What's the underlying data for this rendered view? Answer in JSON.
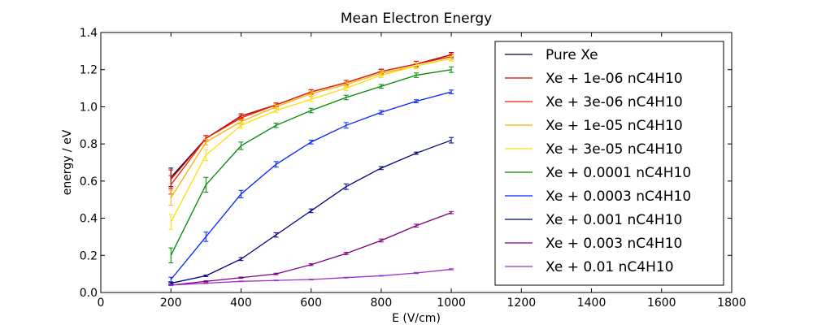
{
  "chart_data": {
    "type": "line",
    "title": "Mean Electron Energy",
    "xlabel": "E (V/cm)",
    "ylabel": "energy / eV",
    "xlim": [
      0,
      1800
    ],
    "ylim": [
      0.0,
      1.4
    ],
    "xticks": [
      0,
      200,
      400,
      600,
      800,
      1000,
      1200,
      1400,
      1600,
      1800
    ],
    "xtick_labels": [
      "0",
      "200",
      "400",
      "600",
      "800",
      "1000",
      "1200",
      "1400",
      "1600",
      "1800"
    ],
    "yticks": [
      0.0,
      0.2,
      0.4,
      0.6,
      0.8,
      1.0,
      1.2,
      1.4
    ],
    "ytick_labels": [
      "0.0",
      "0.2",
      "0.4",
      "0.6",
      "0.8",
      "1.0",
      "1.2",
      "1.4"
    ],
    "grid": false,
    "legend_position": "right",
    "x": [
      200,
      300,
      400,
      500,
      600,
      700,
      800,
      900,
      1000
    ],
    "series": [
      {
        "name": "Pure Xe",
        "color": "#000033",
        "values": [
          0.62,
          0.83,
          0.95,
          1.01,
          1.08,
          1.13,
          1.19,
          1.23,
          1.28
        ],
        "errors": [
          0.05,
          0.015,
          0.012,
          0.01,
          0.012,
          0.012,
          0.012,
          0.015,
          0.012
        ]
      },
      {
        "name": "Xe + 1e-06 nC4H10",
        "color": "#cc0000",
        "values": [
          0.61,
          0.83,
          0.95,
          1.01,
          1.08,
          1.13,
          1.19,
          1.23,
          1.28
        ],
        "errors": [
          0.05,
          0.015,
          0.012,
          0.01,
          0.012,
          0.012,
          0.012,
          0.015,
          0.012
        ]
      },
      {
        "name": "Xe + 3e-06 nC4H10",
        "color": "#ee2200",
        "values": [
          0.58,
          0.83,
          0.94,
          1.01,
          1.08,
          1.13,
          1.19,
          1.23,
          1.27
        ],
        "errors": [
          0.05,
          0.015,
          0.012,
          0.01,
          0.012,
          0.012,
          0.012,
          0.015,
          0.012
        ]
      },
      {
        "name": "Xe + 1e-05 nC4H10",
        "color": "#ffaa00",
        "values": [
          0.51,
          0.81,
          0.92,
          1.0,
          1.07,
          1.12,
          1.18,
          1.22,
          1.26
        ],
        "errors": [
          0.04,
          0.015,
          0.012,
          0.01,
          0.012,
          0.012,
          0.012,
          0.015,
          0.012
        ]
      },
      {
        "name": "Xe + 3e-05 nC4H10",
        "color": "#ffdd00",
        "values": [
          0.38,
          0.74,
          0.9,
          0.98,
          1.04,
          1.1,
          1.17,
          1.22,
          1.26
        ],
        "errors": [
          0.04,
          0.03,
          0.015,
          0.01,
          0.012,
          0.012,
          0.012,
          0.015,
          0.012
        ]
      },
      {
        "name": "Xe + 0.0001 nC4H10",
        "color": "#008800",
        "values": [
          0.2,
          0.58,
          0.79,
          0.9,
          0.98,
          1.05,
          1.11,
          1.17,
          1.2
        ],
        "errors": [
          0.04,
          0.04,
          0.02,
          0.012,
          0.012,
          0.012,
          0.01,
          0.012,
          0.015
        ]
      },
      {
        "name": "Xe + 0.0003 nC4H10",
        "color": "#0022ff",
        "values": [
          0.07,
          0.3,
          0.53,
          0.69,
          0.81,
          0.9,
          0.97,
          1.03,
          1.08
        ],
        "errors": [
          0.012,
          0.025,
          0.02,
          0.015,
          0.01,
          0.015,
          0.01,
          0.008,
          0.01
        ]
      },
      {
        "name": "Xe + 0.001 nC4H10",
        "color": "#000080",
        "values": [
          0.05,
          0.09,
          0.18,
          0.31,
          0.44,
          0.57,
          0.67,
          0.75,
          0.82
        ],
        "errors": [
          0.004,
          0.004,
          0.008,
          0.012,
          0.01,
          0.015,
          0.008,
          0.006,
          0.015
        ]
      },
      {
        "name": "Xe + 0.003 nC4H10",
        "color": "#800080",
        "values": [
          0.04,
          0.06,
          0.08,
          0.1,
          0.15,
          0.21,
          0.28,
          0.36,
          0.43
        ],
        "errors": [
          0.003,
          0.003,
          0.003,
          0.004,
          0.005,
          0.006,
          0.008,
          0.008,
          0.006
        ]
      },
      {
        "name": "Xe + 0.01 nC4H10",
        "color": "#9933cc",
        "values": [
          0.04,
          0.05,
          0.06,
          0.065,
          0.07,
          0.08,
          0.09,
          0.105,
          0.125
        ],
        "errors": [
          0.002,
          0.002,
          0.002,
          0.002,
          0.002,
          0.002,
          0.002,
          0.003,
          0.003
        ]
      }
    ]
  }
}
